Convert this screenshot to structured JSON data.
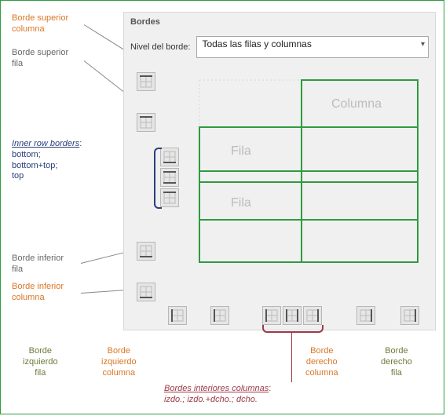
{
  "panel": {
    "title": "Bordes",
    "level_label": "Nivel del borde:",
    "level_value": "Todas las filas y columnas"
  },
  "preview": {
    "col_label": "Columna",
    "row_label": "Fila",
    "border_color": "#2e9b3f",
    "guide_color": "#d6d6d6",
    "text_color": "#bcbcbc"
  },
  "callouts": {
    "top_col": "Borde superior\ncolumna",
    "top_row": "Borde superior\nfila",
    "inner_rows_t": "Inner row borders",
    "inner_rows_b": "bottom;\nbottom+top;\ntop",
    "bottom_row": "Borde inferior\nfila",
    "bottom_col": "Borde inferior\ncolumna",
    "left_row": "Borde\nizquierdo\nfila",
    "left_col": "Borde\nizquierdo\ncolumna",
    "inner_cols_t": "Bordes interiores columnas",
    "inner_cols_b": "izdo.; izdo.+dcho.; dcho.",
    "right_col": "Borde\nderecho\ncolumna",
    "right_row": "Borde\nderecho\nfila"
  },
  "buttons": {
    "top_col": {
      "kind": "h-top"
    },
    "top_row": {
      "kind": "h-top"
    },
    "row_b": {
      "kind": "h-bot"
    },
    "row_bt": {
      "kind": "h-both"
    },
    "row_t": {
      "kind": "h-top"
    },
    "bottom_row": {
      "kind": "h-bot"
    },
    "bottom_col2": {
      "kind": "h-bot"
    },
    "left_row": {
      "kind": "v-left"
    },
    "left_col": {
      "kind": "v-left"
    },
    "col_l": {
      "kind": "v-left"
    },
    "col_lr": {
      "kind": "v-both"
    },
    "col_r": {
      "kind": "v-right"
    },
    "right_col": {
      "kind": "v-right"
    },
    "right_row": {
      "kind": "v-right"
    }
  },
  "colors": {
    "orange": "#d97726",
    "grey": "#676767",
    "olive": "#6b7b3a",
    "navy": "#2a3f7b",
    "maroon": "#9c3a48",
    "panel_bg": "#f0f0f0",
    "btn_bg": "#e6e6e6",
    "btn_border": "#b7b7b7",
    "frame_border": "#2e9b3f"
  }
}
